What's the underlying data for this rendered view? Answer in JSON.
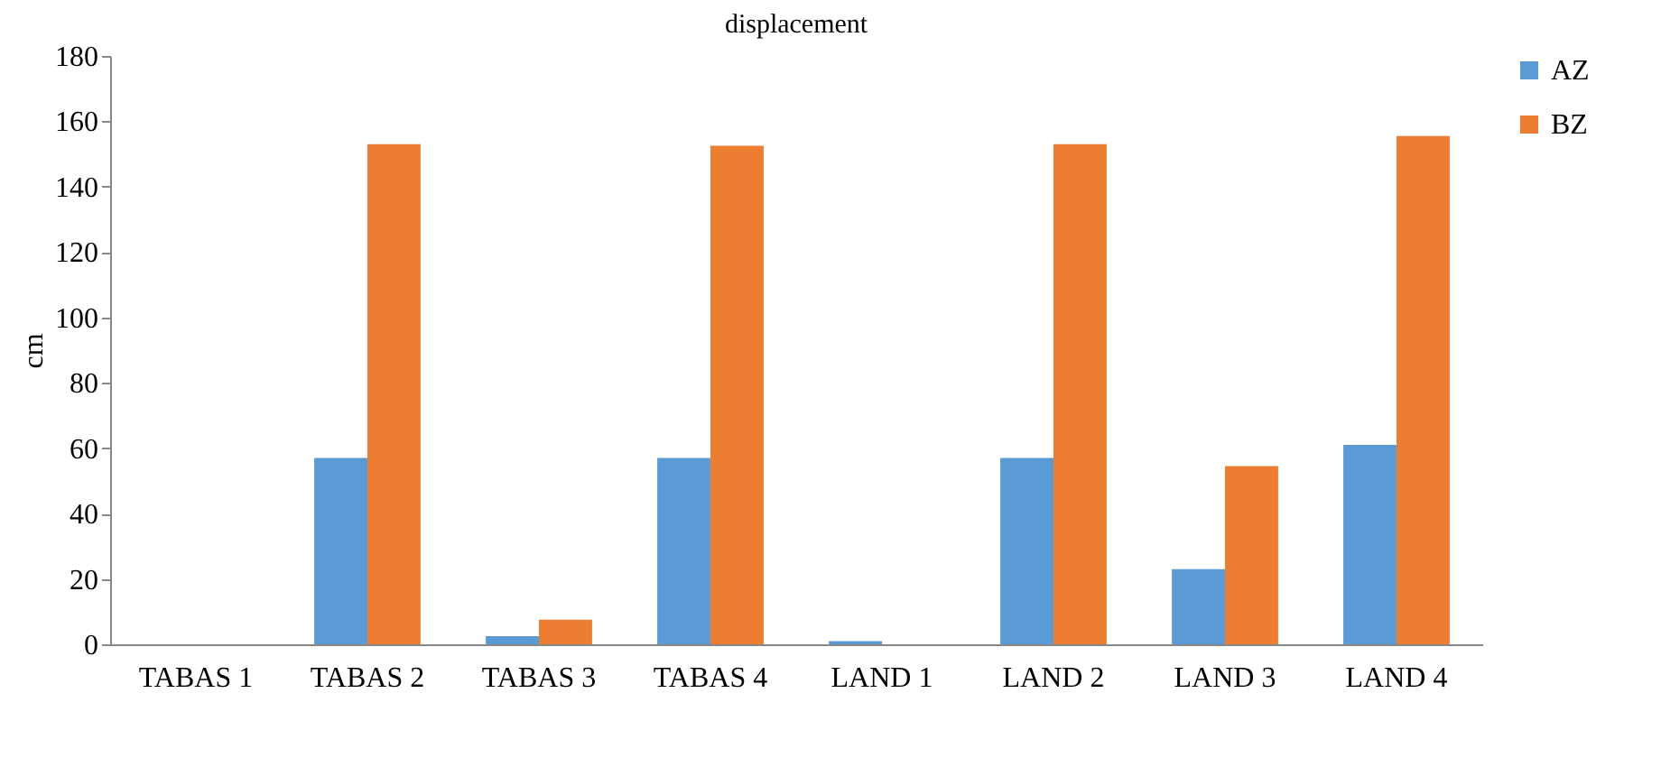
{
  "chart_data": {
    "type": "bar",
    "title": "displacement",
    "ylabel": "cm",
    "categories": [
      "TABAS 1",
      "TABAS 2",
      "TABAS 3",
      "TABAS 4",
      "LAND 1",
      "LAND 2",
      "LAND 3",
      "LAND 4"
    ],
    "series": [
      {
        "name": "AZ",
        "color": "#5b9bd5",
        "values": [
          0,
          57,
          2.5,
          57,
          1,
          57,
          23,
          61
        ]
      },
      {
        "name": "BZ",
        "color": "#ed7d31",
        "values": [
          0,
          153,
          7.5,
          152.5,
          0,
          153,
          54.5,
          155.5
        ]
      }
    ],
    "ylim": [
      0,
      180
    ],
    "yticks": [
      0,
      20,
      40,
      60,
      80,
      100,
      120,
      140,
      160,
      180
    ],
    "grid": false,
    "legend": "right"
  }
}
